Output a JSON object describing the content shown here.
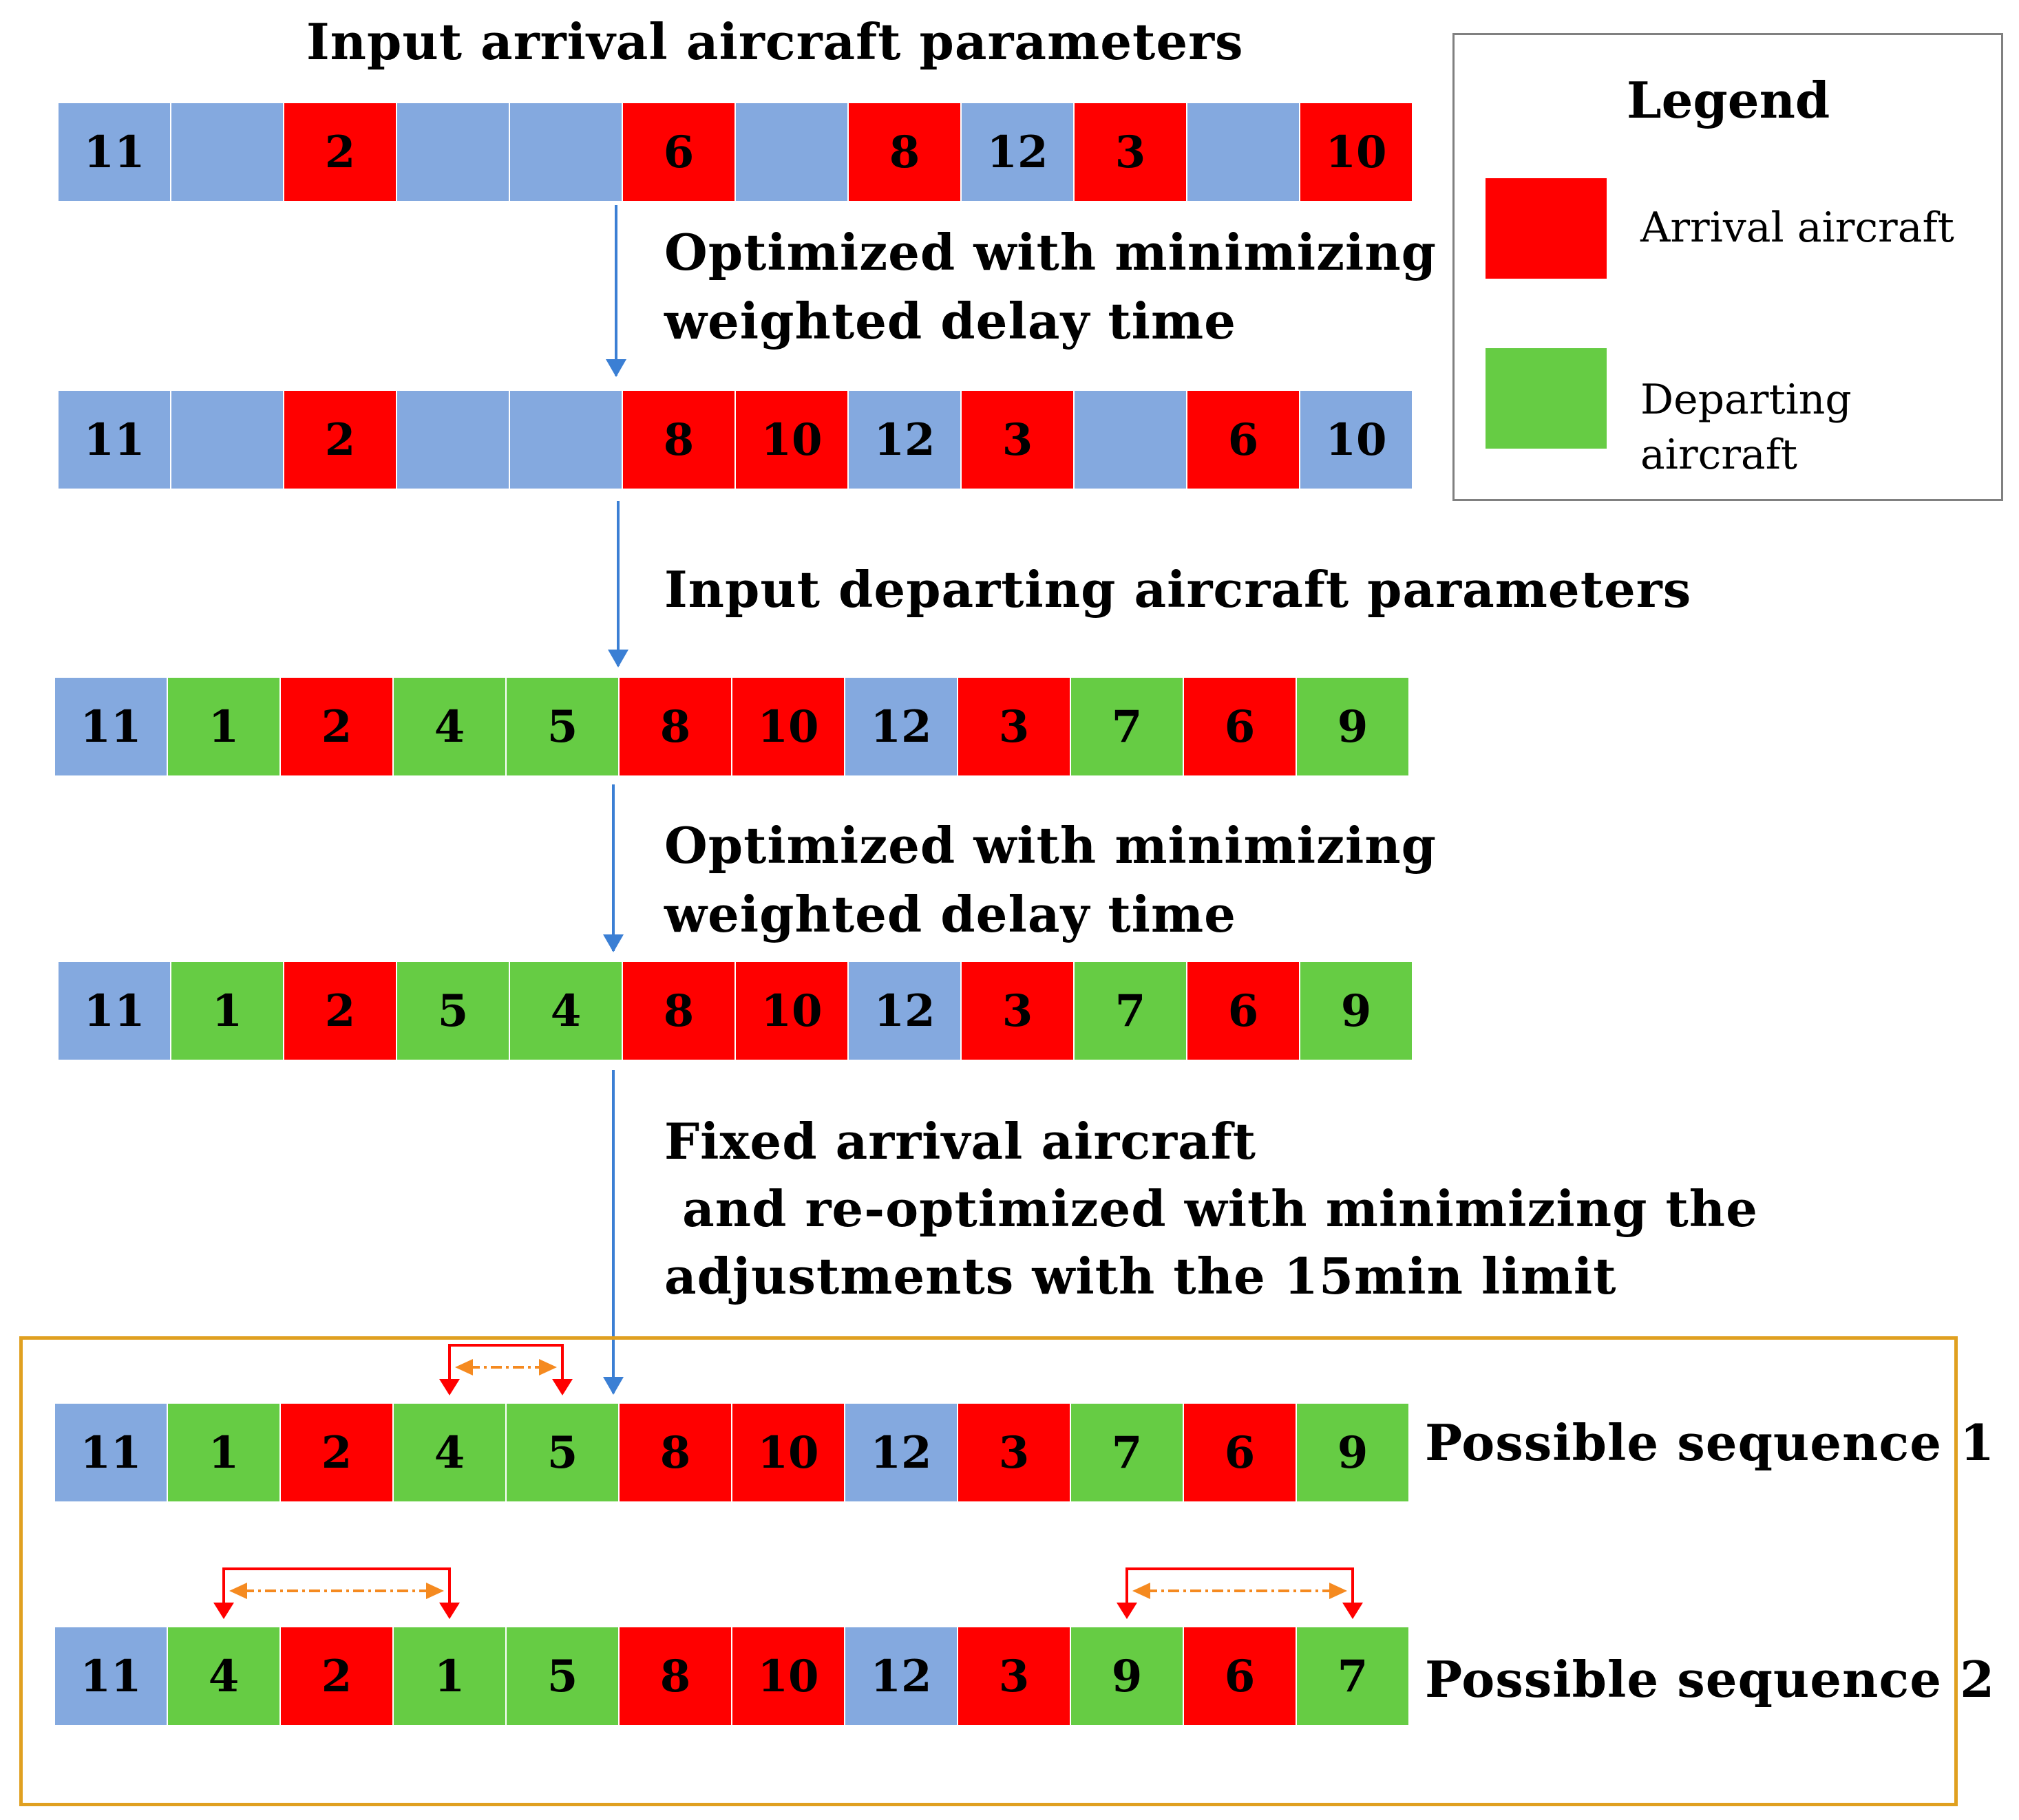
{
  "steps": {
    "input_arrival": "Input arrival aircraft parameters",
    "optimize_1_line1": "Optimized with minimizing",
    "optimize_1_line2": "weighted delay time",
    "input_departing": "Input departing aircraft parameters",
    "optimize_2_line1": "Optimized with minimizing",
    "optimize_2_line2": "weighted delay time",
    "fixed_line1": "Fixed arrival aircraft",
    "fixed_line2": " and re-optimized with minimizing the",
    "fixed_line3": "adjustments with the 15min limit"
  },
  "legend": {
    "title": "Legend",
    "arrival_label": "Arrival aircraft",
    "departing_label": "Departing aircraft"
  },
  "colors": {
    "arrival": "#ff0000",
    "departing": "#66cc44",
    "slot": "#84a9df",
    "flow_arrow": "#3b7fd4",
    "swap_bracket": "#ff0000",
    "swap_dash": "#f58a20",
    "frame": "#e0a020"
  },
  "sequences": [
    {
      "cells": [
        {
          "label": "11",
          "type": "slot"
        },
        {
          "label": "",
          "type": "slot"
        },
        {
          "label": "2",
          "type": "arrival"
        },
        {
          "label": "",
          "type": "slot"
        },
        {
          "label": "",
          "type": "slot"
        },
        {
          "label": "6",
          "type": "arrival"
        },
        {
          "label": "",
          "type": "slot"
        },
        {
          "label": "8",
          "type": "arrival"
        },
        {
          "label": "12",
          "type": "slot"
        },
        {
          "label": "3",
          "type": "arrival"
        },
        {
          "label": "",
          "type": "slot"
        },
        {
          "label": "10",
          "type": "arrival"
        }
      ]
    },
    {
      "cells": [
        {
          "label": "11",
          "type": "slot"
        },
        {
          "label": "",
          "type": "slot"
        },
        {
          "label": "2",
          "type": "arrival"
        },
        {
          "label": "",
          "type": "slot"
        },
        {
          "label": "",
          "type": "slot"
        },
        {
          "label": "8",
          "type": "arrival"
        },
        {
          "label": "10",
          "type": "arrival"
        },
        {
          "label": "12",
          "type": "slot"
        },
        {
          "label": "3",
          "type": "arrival"
        },
        {
          "label": "",
          "type": "slot"
        },
        {
          "label": "6",
          "type": "arrival"
        },
        {
          "label": "10",
          "type": "slot"
        }
      ]
    },
    {
      "cells": [
        {
          "label": "11",
          "type": "slot"
        },
        {
          "label": "1",
          "type": "departing"
        },
        {
          "label": "2",
          "type": "arrival"
        },
        {
          "label": "4",
          "type": "departing"
        },
        {
          "label": "5",
          "type": "departing"
        },
        {
          "label": "8",
          "type": "arrival"
        },
        {
          "label": "10",
          "type": "arrival"
        },
        {
          "label": "12",
          "type": "slot"
        },
        {
          "label": "3",
          "type": "arrival"
        },
        {
          "label": "7",
          "type": "departing"
        },
        {
          "label": "6",
          "type": "arrival"
        },
        {
          "label": "9",
          "type": "departing"
        }
      ]
    },
    {
      "cells": [
        {
          "label": "11",
          "type": "slot"
        },
        {
          "label": "1",
          "type": "departing"
        },
        {
          "label": "2",
          "type": "arrival"
        },
        {
          "label": "5",
          "type": "departing"
        },
        {
          "label": "4",
          "type": "departing"
        },
        {
          "label": "8",
          "type": "arrival"
        },
        {
          "label": "10",
          "type": "arrival"
        },
        {
          "label": "12",
          "type": "slot"
        },
        {
          "label": "3",
          "type": "arrival"
        },
        {
          "label": "7",
          "type": "departing"
        },
        {
          "label": "6",
          "type": "arrival"
        },
        {
          "label": "9",
          "type": "departing"
        }
      ]
    },
    {
      "label": "Possible sequence 1",
      "swaps": [
        [
          3,
          4
        ]
      ],
      "cells": [
        {
          "label": "11",
          "type": "slot"
        },
        {
          "label": "1",
          "type": "departing"
        },
        {
          "label": "2",
          "type": "arrival"
        },
        {
          "label": "4",
          "type": "departing"
        },
        {
          "label": "5",
          "type": "departing"
        },
        {
          "label": "8",
          "type": "arrival"
        },
        {
          "label": "10",
          "type": "arrival"
        },
        {
          "label": "12",
          "type": "slot"
        },
        {
          "label": "3",
          "type": "arrival"
        },
        {
          "label": "7",
          "type": "departing"
        },
        {
          "label": "6",
          "type": "arrival"
        },
        {
          "label": "9",
          "type": "departing"
        }
      ]
    },
    {
      "label": "Possible sequence 2",
      "swaps": [
        [
          1,
          3
        ],
        [
          9,
          11
        ]
      ],
      "cells": [
        {
          "label": "11",
          "type": "slot"
        },
        {
          "label": "4",
          "type": "departing"
        },
        {
          "label": "2",
          "type": "arrival"
        },
        {
          "label": "1",
          "type": "departing"
        },
        {
          "label": "5",
          "type": "departing"
        },
        {
          "label": "8",
          "type": "arrival"
        },
        {
          "label": "10",
          "type": "arrival"
        },
        {
          "label": "12",
          "type": "slot"
        },
        {
          "label": "3",
          "type": "arrival"
        },
        {
          "label": "9",
          "type": "departing"
        },
        {
          "label": "6",
          "type": "arrival"
        },
        {
          "label": "7",
          "type": "departing"
        }
      ]
    }
  ]
}
